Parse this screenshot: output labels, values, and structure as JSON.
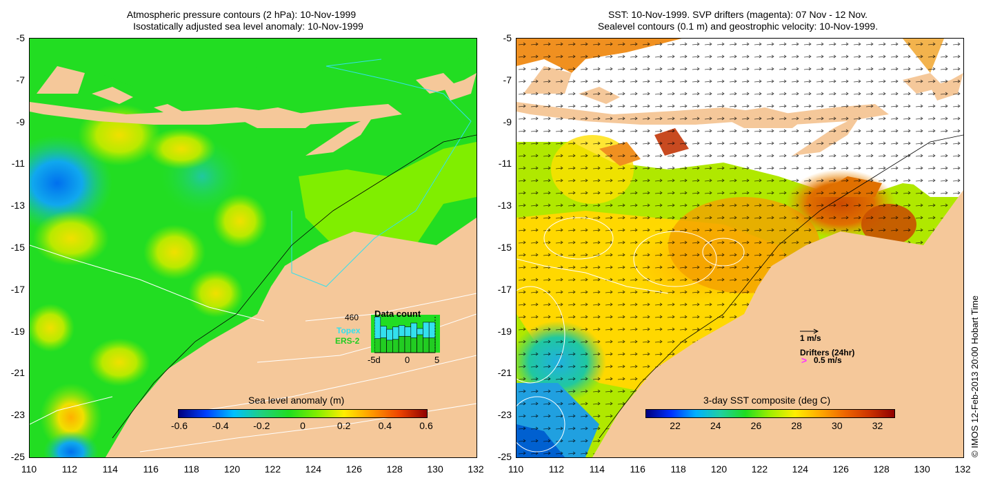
{
  "left_panel": {
    "title_line1": "Atmospheric pressure contours (2 hPa): 10-Nov-1999",
    "title_line2": "Isostatically adjusted sea level anomaly: 10-Nov-1999",
    "colorbar_title": "Sea level anomaly (m)",
    "colorbar_ticks": [
      "-0.6",
      "-0.4",
      "-0.2",
      "0",
      "0.2",
      "0.4",
      "0.6"
    ],
    "colorbar_values": [
      -0.6,
      -0.4,
      -0.2,
      0,
      0.2,
      0.4,
      0.6
    ],
    "inset": {
      "title": "Data count",
      "max_label": "460",
      "topex_label": "Topex",
      "ers_label": "ERS-2",
      "x_ticks": [
        "-5d",
        "0",
        "5"
      ],
      "topex_color": "#33e0ee",
      "ers_color": "#22cc22",
      "topex_counts": [
        460,
        340,
        300,
        330,
        350,
        330,
        380,
        310,
        390,
        390
      ],
      "ers_counts": [
        180,
        190,
        160,
        170,
        210,
        210,
        190,
        230,
        190,
        190
      ]
    }
  },
  "right_panel": {
    "title_line1": "SST: 10-Nov-1999. SVP drifters (magenta): 07 Nov - 12 Nov.",
    "title_line2": "Sealevel contours (0.1 m) and geostrophic velocity: 10-Nov-1999.",
    "colorbar_title": "3-day SST composite (deg C)",
    "colorbar_ticks": [
      "22",
      "24",
      "26",
      "28",
      "30",
      "32"
    ],
    "colorbar_values": [
      22,
      24,
      26,
      28,
      30,
      32
    ],
    "velocity_scale_label": "1 m/s",
    "drifters_label": "Drifters (24hr)",
    "drifter_scale_label": "0.5 m/s",
    "drifter_color": "#ff33ff"
  },
  "axes": {
    "lat_ticks": [
      "-5",
      "-7",
      "-9",
      "-11",
      "-13",
      "-15",
      "-17",
      "-19",
      "-21",
      "-23",
      "-25"
    ],
    "lon_ticks": [
      "110",
      "112",
      "114",
      "116",
      "118",
      "120",
      "122",
      "124",
      "126",
      "128",
      "130",
      "132"
    ]
  },
  "credit": "© IMOS 12-Feb-2013 20:00 Hobart Time",
  "colors": {
    "land": "#f5c89a",
    "slc_scale": [
      "#00007f",
      "#0040ff",
      "#00c0ff",
      "#20d080",
      "#20dd20",
      "#80ee00",
      "#ffee00",
      "#ff9900",
      "#ee4400",
      "#900000"
    ],
    "sst_scale": [
      "#00007f",
      "#0030ff",
      "#00b0ff",
      "#20d0a0",
      "#20dd20",
      "#a0ee00",
      "#ffee00",
      "#ffaa00",
      "#ee6600",
      "#cc3300",
      "#900000"
    ]
  }
}
